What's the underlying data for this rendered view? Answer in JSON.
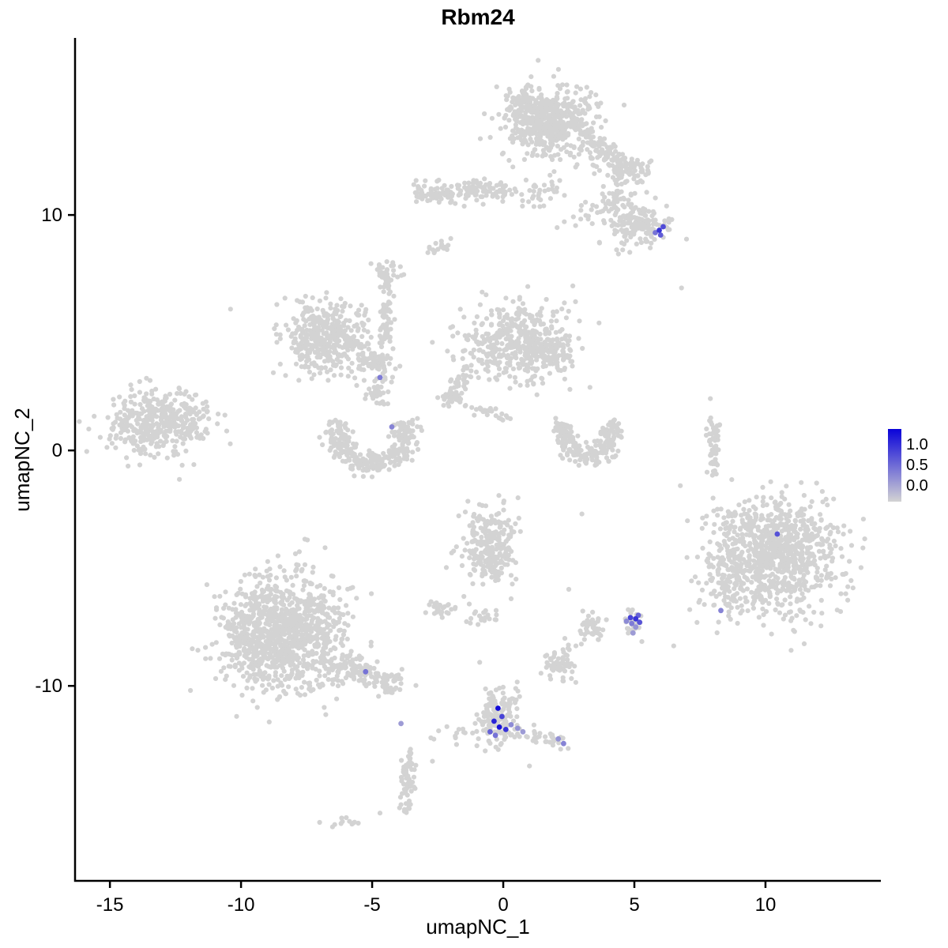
{
  "chart_data": {
    "type": "scatter",
    "title": "Rbm24",
    "xlabel": "umapNC_1",
    "ylabel": "umapNC_2",
    "x_ticks": [
      -15,
      -10,
      -5,
      0,
      5,
      10
    ],
    "y_ticks": [
      10,
      0,
      -10
    ],
    "xlim": [
      -16.33,
      14.4
    ],
    "ylim": [
      -18.28,
      17.52
    ],
    "grid": false,
    "legend_position": "right",
    "point_color_zero": "#d3d3d3",
    "point_color_max": "#0a03d9",
    "expression_domain": [
      0,
      1.3
    ],
    "legend": {
      "labels": [
        "1.0",
        "0.5",
        "0.0"
      ]
    },
    "background_clusters": [
      {
        "type": "blob",
        "cx": 1.8,
        "cy": 13.9,
        "sx": 0.85,
        "sy": 0.75,
        "n": 520
      },
      {
        "type": "blob",
        "cx": 1.0,
        "cy": 14.8,
        "sx": 0.45,
        "sy": 0.4,
        "n": 90
      },
      {
        "type": "band",
        "x1": 3.3,
        "y1": 13.2,
        "x2": 4.6,
        "y2": 12.0,
        "spread": 0.25,
        "n": 70
      },
      {
        "type": "blob",
        "cx": 4.6,
        "cy": 11.9,
        "sx": 0.5,
        "sy": 0.4,
        "n": 90
      },
      {
        "type": "band",
        "x1": -3.4,
        "y1": 10.9,
        "x2": 0.2,
        "y2": 11.1,
        "spread": 0.22,
        "n": 150
      },
      {
        "type": "band",
        "x1": 0.3,
        "y1": 11.0,
        "x2": 2.2,
        "y2": 10.9,
        "spread": 0.3,
        "n": 35
      },
      {
        "type": "blob",
        "cx": 5.0,
        "cy": 9.6,
        "sx": 0.6,
        "sy": 0.5,
        "n": 150
      },
      {
        "type": "blob",
        "cx": 4.3,
        "cy": 10.6,
        "sx": 0.35,
        "sy": 0.3,
        "n": 40
      },
      {
        "type": "blob",
        "cx": -2.5,
        "cy": 8.6,
        "sx": 0.28,
        "sy": 0.15,
        "n": 16
      },
      {
        "type": "blob",
        "cx": 2.9,
        "cy": 9.9,
        "sx": 0.7,
        "sy": 0.5,
        "n": 18
      },
      {
        "type": "band",
        "x1": -4.4,
        "y1": 7.4,
        "x2": -4.5,
        "y2": 4.6,
        "spread": 0.14,
        "n": 60
      },
      {
        "type": "blob",
        "cx": -4.5,
        "cy": 7.6,
        "sx": 0.3,
        "sy": 0.25,
        "n": 30
      },
      {
        "type": "blob",
        "cx": -6.8,
        "cy": 4.8,
        "sx": 0.85,
        "sy": 0.75,
        "n": 430
      },
      {
        "type": "band",
        "x1": -5.6,
        "y1": 4.1,
        "x2": -4.2,
        "y2": 3.4,
        "spread": 0.25,
        "n": 60
      },
      {
        "type": "band",
        "x1": -5.2,
        "y1": 3.0,
        "x2": -4.5,
        "y2": 2.0,
        "spread": 0.18,
        "n": 30
      },
      {
        "type": "blob",
        "cx": 0.5,
        "cy": 4.6,
        "sx": 1.0,
        "sy": 0.75,
        "n": 430
      },
      {
        "type": "blob",
        "cx": 1.8,
        "cy": 4.0,
        "sx": 0.5,
        "sy": 0.45,
        "n": 80
      },
      {
        "type": "band",
        "x1": -1.3,
        "y1": 3.3,
        "x2": -2.4,
        "y2": 2.1,
        "spread": 0.2,
        "n": 45
      },
      {
        "type": "band",
        "x1": -2.2,
        "y1": 2.3,
        "x2": 0.2,
        "y2": 1.3,
        "spread": 0.15,
        "n": 40
      },
      {
        "type": "arc",
        "cx": -5.0,
        "cy": 0.8,
        "r": 1.35,
        "a1": 160,
        "a2": 380,
        "th": 0.25,
        "n": 280
      },
      {
        "type": "blob",
        "cx": -13.2,
        "cy": 1.2,
        "sx": 0.95,
        "sy": 0.7,
        "n": 420
      },
      {
        "type": "arc",
        "cx": 3.2,
        "cy": 0.7,
        "r": 0.95,
        "a1": 150,
        "a2": 390,
        "th": 0.22,
        "n": 210
      },
      {
        "type": "band",
        "x1": 8.0,
        "y1": 1.3,
        "x2": 8.05,
        "y2": -1.0,
        "spread": 0.12,
        "n": 55
      },
      {
        "type": "blob",
        "cx": 10.3,
        "cy": -4.4,
        "sx": 1.25,
        "sy": 1.2,
        "n": 900
      },
      {
        "type": "blob",
        "cx": 8.4,
        "cy": -5.8,
        "sx": 0.5,
        "sy": 0.8,
        "n": 80
      },
      {
        "type": "blob",
        "cx": -0.5,
        "cy": -4.1,
        "sx": 0.55,
        "sy": 0.75,
        "n": 250
      },
      {
        "type": "blob",
        "cx": -2.5,
        "cy": -6.7,
        "sx": 0.28,
        "sy": 0.2,
        "n": 28
      },
      {
        "type": "blob",
        "cx": -0.8,
        "cy": -7.1,
        "sx": 0.3,
        "sy": 0.25,
        "n": 20
      },
      {
        "type": "blob",
        "cx": 3.3,
        "cy": -7.5,
        "sx": 0.28,
        "sy": 0.33,
        "n": 45
      },
      {
        "type": "blob",
        "cx": 4.95,
        "cy": -7.35,
        "sx": 0.22,
        "sy": 0.3,
        "n": 25
      },
      {
        "type": "blob",
        "cx": -8.3,
        "cy": -7.7,
        "sx": 1.15,
        "sy": 1.25,
        "n": 950
      },
      {
        "type": "blob",
        "cx": -9.5,
        "cy": -8.2,
        "sx": 0.7,
        "sy": 0.8,
        "n": 150
      },
      {
        "type": "band",
        "x1": -6.3,
        "y1": -9.0,
        "x2": -4.0,
        "y2": -10.0,
        "spread": 0.3,
        "n": 130
      },
      {
        "type": "blob",
        "cx": 2.2,
        "cy": -9.1,
        "sx": 0.32,
        "sy": 0.38,
        "n": 60
      },
      {
        "type": "blob",
        "cx": -0.2,
        "cy": -11.2,
        "sx": 0.42,
        "sy": 0.62,
        "n": 140
      },
      {
        "type": "band",
        "x1": 0.6,
        "y1": -11.9,
        "x2": 2.3,
        "y2": -12.5,
        "spread": 0.18,
        "n": 35
      },
      {
        "type": "band",
        "x1": -3.6,
        "y1": -12.8,
        "x2": -3.7,
        "y2": -15.6,
        "spread": 0.14,
        "n": 65
      },
      {
        "type": "band",
        "x1": -3.3,
        "y1": -12.4,
        "x2": -1.0,
        "y2": -11.6,
        "spread": 0.15,
        "n": 12
      },
      {
        "type": "blob",
        "cx": -6.0,
        "cy": -15.8,
        "sx": 0.3,
        "sy": 0.12,
        "n": 12
      },
      {
        "type": "singles",
        "points": [
          [
            -10.4,
            6.0
          ],
          [
            6.8,
            6.9
          ],
          [
            -2.0,
            9.0
          ],
          [
            7.9,
            2.2
          ],
          [
            -4.7,
            -15.4
          ],
          [
            -11.8,
            -0.6
          ],
          [
            0.3,
            -6.3
          ],
          [
            -1.5,
            -6.2
          ],
          [
            3.0,
            -2.7
          ],
          [
            2.5,
            -5.9
          ],
          [
            6.5,
            -8.3
          ],
          [
            -0.9,
            -9.0
          ],
          [
            1.0,
            -13.4
          ],
          [
            -2.7,
            -13.2
          ]
        ]
      }
    ],
    "expressing_cells": [
      {
        "x": 5.95,
        "y": 9.35,
        "v": 1.0
      },
      {
        "x": 6.1,
        "y": 9.5,
        "v": 0.85
      },
      {
        "x": 5.8,
        "y": 9.25,
        "v": 0.6
      },
      {
        "x": 6.0,
        "y": 9.15,
        "v": 0.75
      },
      {
        "x": -4.7,
        "y": 3.1,
        "v": 0.55
      },
      {
        "x": -4.25,
        "y": 1.0,
        "v": 0.5
      },
      {
        "x": 10.45,
        "y": -3.55,
        "v": 0.8
      },
      {
        "x": 8.3,
        "y": -6.8,
        "v": 0.5
      },
      {
        "x": 4.85,
        "y": -7.1,
        "v": 0.9
      },
      {
        "x": 5.05,
        "y": -7.15,
        "v": 1.0
      },
      {
        "x": 5.15,
        "y": -7.0,
        "v": 0.7
      },
      {
        "x": 4.9,
        "y": -7.35,
        "v": 0.55
      },
      {
        "x": 5.05,
        "y": -7.5,
        "v": 0.4
      },
      {
        "x": 4.95,
        "y": -7.75,
        "v": 0.35
      },
      {
        "x": 5.2,
        "y": -7.3,
        "v": 0.8
      },
      {
        "x": 4.7,
        "y": -7.25,
        "v": 0.45
      },
      {
        "x": -5.25,
        "y": -9.4,
        "v": 0.6
      },
      {
        "x": -3.9,
        "y": -11.6,
        "v": 0.35
      },
      {
        "x": -0.2,
        "y": -10.95,
        "v": 1.25
      },
      {
        "x": -0.35,
        "y": -11.5,
        "v": 1.1
      },
      {
        "x": -0.15,
        "y": -11.75,
        "v": 1.2
      },
      {
        "x": 0.1,
        "y": -11.85,
        "v": 1.0
      },
      {
        "x": -0.05,
        "y": -11.3,
        "v": 0.9
      },
      {
        "x": -0.5,
        "y": -11.95,
        "v": 0.7
      },
      {
        "x": -0.3,
        "y": -12.1,
        "v": 0.6
      },
      {
        "x": 0.3,
        "y": -11.65,
        "v": 0.45
      },
      {
        "x": 0.55,
        "y": -11.8,
        "v": 0.4
      },
      {
        "x": 0.75,
        "y": -11.95,
        "v": 0.35
      },
      {
        "x": 2.1,
        "y": -12.25,
        "v": 0.4
      },
      {
        "x": 2.3,
        "y": -12.45,
        "v": 0.5
      }
    ]
  }
}
